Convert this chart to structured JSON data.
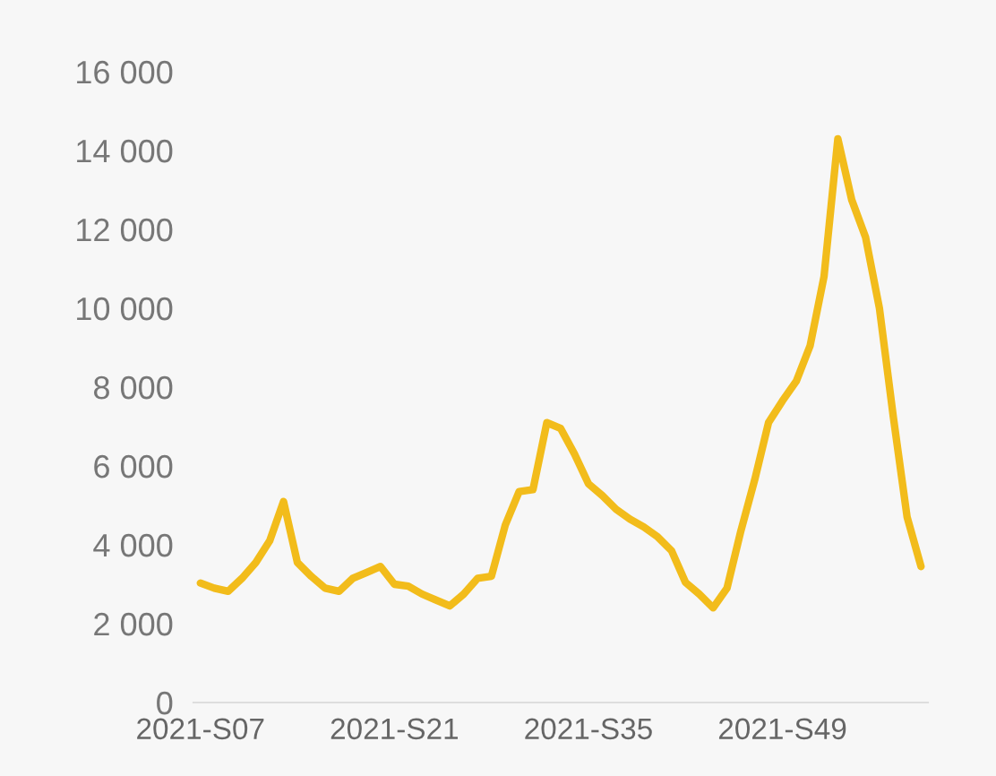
{
  "chart_data": {
    "type": "line",
    "categories": [
      "2021-S07",
      null,
      null,
      null,
      null,
      null,
      null,
      null,
      null,
      null,
      null,
      null,
      null,
      null,
      "2021-S21",
      null,
      null,
      null,
      null,
      null,
      null,
      null,
      null,
      null,
      null,
      null,
      null,
      null,
      "2021-S35",
      null,
      null,
      null,
      null,
      null,
      null,
      null,
      null,
      null,
      null,
      null,
      null,
      null,
      "2021-S49",
      null,
      null,
      null,
      null,
      null,
      null,
      null,
      null,
      null,
      null
    ],
    "series": [
      {
        "color": "#f2bc1b",
        "values": [
          3030,
          2900,
          2820,
          3150,
          3550,
          4100,
          5100,
          3550,
          3200,
          2900,
          2820,
          3150,
          3300,
          3450,
          3000,
          2950,
          2750,
          2600,
          2450,
          2750,
          3150,
          3200,
          4500,
          5350,
          5400,
          7100,
          6950,
          6300,
          5550,
          5250,
          4900,
          4650,
          4450,
          4200,
          3850,
          3050,
          2750,
          2400,
          2900,
          4350,
          5650,
          7100,
          7650,
          8150,
          9050,
          10800,
          14300,
          12750,
          11800,
          10000,
          7250,
          4700,
          3450
        ]
      }
    ],
    "ylim": [
      0,
      16000
    ],
    "yticks": [
      0,
      {
        "value": 2000,
        "label": "2 000"
      },
      {
        "value": 4000,
        "label": "4 000"
      },
      {
        "value": 6000,
        "label": "6 000"
      },
      {
        "value": 8000,
        "label": "8 000"
      },
      {
        "value": 10000,
        "label": "10 000"
      },
      {
        "value": 12000,
        "label": "12 000"
      },
      {
        "value": 14000,
        "label": "14 000"
      },
      {
        "value": 16000,
        "label": "16 000"
      }
    ],
    "grid": false,
    "legend": false,
    "marker": "none",
    "line_style": "solid"
  }
}
